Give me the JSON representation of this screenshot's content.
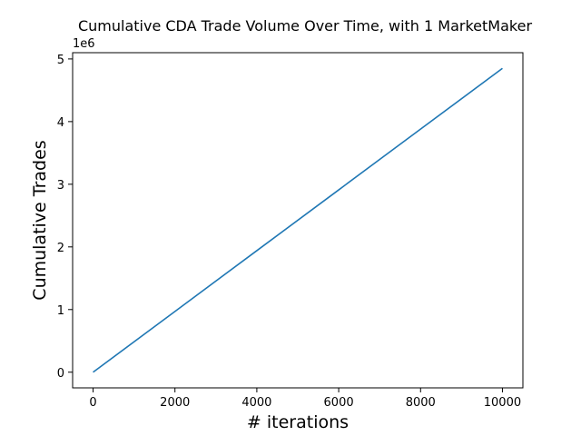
{
  "chart_data": {
    "type": "line",
    "title": "Cumulative CDA Trade Volume Over Time, with 1 MarketMaker",
    "xlabel": "# iterations",
    "ylabel": "Cumulative Trades",
    "y_offset_label": "1e6",
    "xlim": [
      -500,
      10500
    ],
    "ylim": [
      -250000,
      5100000
    ],
    "x_ticks": [
      0,
      2000,
      4000,
      6000,
      8000,
      10000
    ],
    "x_tick_labels": [
      "0",
      "2000",
      "4000",
      "6000",
      "8000",
      "10000"
    ],
    "y_ticks": [
      0,
      1000000,
      2000000,
      3000000,
      4000000,
      5000000
    ],
    "y_tick_labels": [
      "0",
      "1",
      "2",
      "3",
      "4",
      "5"
    ],
    "grid": false,
    "series": [
      {
        "color": "#1f77b4",
        "x": [
          0,
          2000,
          4000,
          6000,
          8000,
          10000
        ],
        "y": [
          0,
          970000,
          1940000,
          2910000,
          3880000,
          4850000
        ]
      }
    ]
  }
}
